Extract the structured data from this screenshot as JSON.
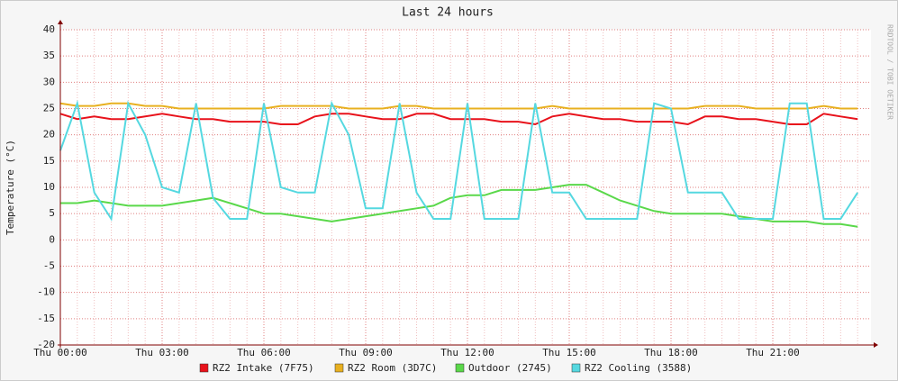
{
  "chart_data": {
    "type": "line",
    "title": "Last 24 hours",
    "y_label": "Temperature (°C)",
    "watermark": "RRDTOOL / TOBI OETIKER",
    "categories": [
      "Thu 00:00",
      null,
      null,
      null,
      null,
      null,
      "Thu 03:00",
      null,
      null,
      null,
      null,
      null,
      "Thu 06:00",
      null,
      null,
      null,
      null,
      null,
      "Thu 09:00",
      null,
      null,
      null,
      null,
      null,
      "Thu 12:00",
      null,
      null,
      null,
      null,
      null,
      "Thu 15:00",
      null,
      null,
      null,
      null,
      null,
      "Thu 18:00",
      null,
      null,
      null,
      null,
      null,
      "Thu 21:00",
      null,
      null,
      null,
      null,
      null
    ],
    "series": [
      {
        "name": "RZ2 Intake (7F75)",
        "color": "#e8121b",
        "values": [
          24,
          23,
          23.5,
          23,
          23,
          23.5,
          24,
          23.5,
          23,
          23,
          22.5,
          22.5,
          22.5,
          22,
          22,
          23.5,
          24,
          24,
          23.5,
          23,
          23,
          24,
          24,
          23,
          23,
          23,
          22.5,
          22.5,
          22,
          23.5,
          24,
          23.5,
          23,
          23,
          22.5,
          22.5,
          22.5,
          22,
          23.5,
          23.5,
          23,
          23,
          22.5,
          22,
          22,
          24,
          23.5,
          23
        ]
      },
      {
        "name": "RZ2 Room (3D7C)",
        "color": "#e8b020",
        "values": [
          26,
          25.5,
          25.5,
          26,
          26,
          25.5,
          25.5,
          25,
          25,
          25,
          25,
          25,
          25,
          25.5,
          25.5,
          25.5,
          25.5,
          25,
          25,
          25,
          25.5,
          25.5,
          25,
          25,
          25,
          25,
          25,
          25,
          25,
          25.5,
          25,
          25,
          25,
          25,
          25,
          25,
          25,
          25,
          25.5,
          25.5,
          25.5,
          25,
          25,
          25,
          25,
          25.5,
          25,
          25
        ]
      },
      {
        "name": "Outdoor (2745)",
        "color": "#5ad84a",
        "values": [
          7,
          7,
          7.5,
          7,
          6.5,
          6.5,
          6.5,
          7,
          7.5,
          8,
          7,
          6,
          5,
          5,
          4.5,
          4,
          3.5,
          4,
          4.5,
          5,
          5.5,
          6,
          6.5,
          8,
          8.5,
          8.5,
          9.5,
          9.5,
          9.5,
          10,
          10.5,
          10.5,
          9,
          7.5,
          6.5,
          5.5,
          5,
          5,
          5,
          5,
          4.5,
          4,
          3.5,
          3.5,
          3.5,
          3,
          3,
          2.5
        ]
      },
      {
        "name": "RZ2 Cooling (3588)",
        "color": "#55d8e0",
        "values": [
          17,
          26,
          9,
          4,
          26,
          20,
          10,
          9,
          26,
          8,
          4,
          4,
          26,
          10,
          9,
          9,
          26,
          20,
          6,
          6,
          26,
          9,
          4,
          4,
          26,
          4,
          4,
          4,
          26,
          9,
          9,
          4,
          4,
          4,
          4,
          26,
          25,
          9,
          9,
          9,
          4,
          4,
          4,
          26,
          26,
          4,
          4,
          9
        ]
      }
    ],
    "ylim": [
      -20,
      40
    ],
    "yticks": [
      -20,
      -15,
      -10,
      -5,
      0,
      5,
      10,
      15,
      20,
      25,
      30,
      35,
      40
    ],
    "grid": true
  }
}
